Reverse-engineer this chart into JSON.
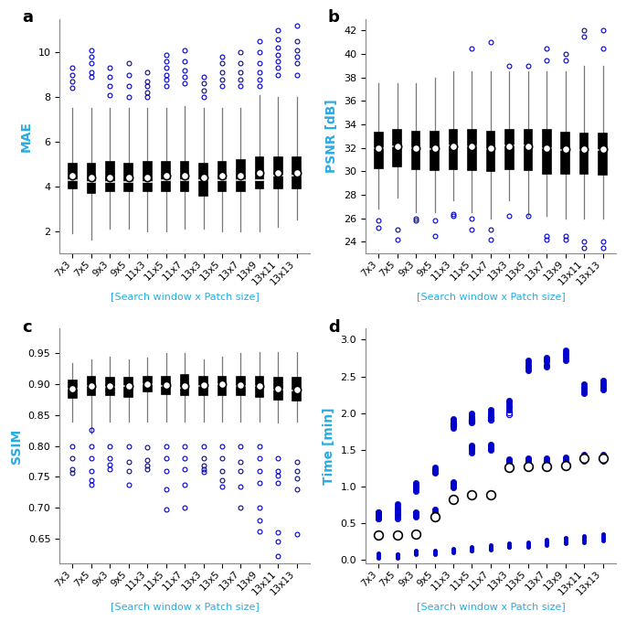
{
  "categories": [
    "7x3",
    "7x5",
    "9x3",
    "9x5",
    "11x3",
    "11x5",
    "11x7",
    "13x3",
    "13x5",
    "13x7",
    "13x9",
    "13x11",
    "13x13"
  ],
  "xlabel": "[Search window x Patch size]",
  "panel_labels": [
    "a",
    "b",
    "c",
    "d"
  ],
  "ylabel_color": "#29ABE2",
  "outlier_color": "#0000CC",
  "filled_dot_color": "#0000CC",
  "mae": {
    "ylabel": "MAE",
    "ylim": [
      1.0,
      11.5
    ],
    "yticks": [
      2,
      4,
      6,
      8,
      10
    ],
    "box_q1": [
      3.9,
      3.7,
      3.8,
      3.8,
      3.8,
      3.8,
      3.8,
      3.6,
      3.8,
      3.8,
      3.9,
      3.9,
      3.9
    ],
    "box_med": [
      4.3,
      4.2,
      4.2,
      4.2,
      4.2,
      4.3,
      4.3,
      4.3,
      4.3,
      4.3,
      4.3,
      4.5,
      4.5
    ],
    "box_q3": [
      5.0,
      5.0,
      5.1,
      5.0,
      5.1,
      5.1,
      5.1,
      5.0,
      5.1,
      5.2,
      5.3,
      5.3,
      5.3
    ],
    "box_mean": [
      4.5,
      4.4,
      4.4,
      4.4,
      4.4,
      4.5,
      4.5,
      4.4,
      4.5,
      4.5,
      4.6,
      4.6,
      4.6
    ],
    "whisker_lo": [
      1.9,
      1.6,
      2.1,
      2.1,
      2.0,
      2.0,
      2.1,
      2.1,
      2.0,
      2.0,
      2.0,
      2.2,
      2.5
    ],
    "whisker_hi": [
      7.5,
      7.5,
      7.5,
      7.5,
      7.5,
      7.5,
      7.6,
      7.5,
      7.5,
      7.5,
      8.1,
      8.0,
      8.0
    ],
    "outliers_x": [
      0,
      0,
      0,
      0,
      1,
      1,
      1,
      1,
      1,
      2,
      2,
      2,
      2,
      3,
      3,
      3,
      3,
      4,
      4,
      4,
      4,
      4,
      5,
      5,
      5,
      5,
      5,
      5,
      6,
      6,
      6,
      6,
      6,
      7,
      7,
      7,
      7,
      8,
      8,
      8,
      8,
      8,
      9,
      9,
      9,
      9,
      9,
      10,
      10,
      10,
      10,
      10,
      10,
      11,
      11,
      11,
      11,
      11,
      11,
      11,
      12,
      12,
      12,
      12,
      12,
      12
    ],
    "outliers_y": [
      8.4,
      8.7,
      9.0,
      9.3,
      8.9,
      9.1,
      9.5,
      9.8,
      10.1,
      8.1,
      8.5,
      8.9,
      9.3,
      8.0,
      8.5,
      9.0,
      9.5,
      8.0,
      8.2,
      8.5,
      8.7,
      9.1,
      8.5,
      8.8,
      9.0,
      9.3,
      9.6,
      9.9,
      8.6,
      8.9,
      9.2,
      9.6,
      10.1,
      8.0,
      8.3,
      8.6,
      8.9,
      8.5,
      8.8,
      9.1,
      9.5,
      9.8,
      8.5,
      8.8,
      9.1,
      9.5,
      10.0,
      8.5,
      8.8,
      9.1,
      9.5,
      10.0,
      10.5,
      9.0,
      9.3,
      9.6,
      9.9,
      10.2,
      10.6,
      11.0,
      9.0,
      9.5,
      9.8,
      10.1,
      10.5,
      11.2
    ]
  },
  "psnr": {
    "ylabel": "PSNR [dB]",
    "ylim": [
      23.0,
      43.0
    ],
    "yticks": [
      24,
      26,
      28,
      30,
      32,
      34,
      36,
      38,
      40,
      42
    ],
    "box_q1": [
      30.3,
      30.4,
      30.2,
      30.1,
      30.2,
      30.1,
      30.0,
      30.2,
      30.1,
      29.8,
      29.8,
      29.8,
      29.7
    ],
    "box_med": [
      32.0,
      32.1,
      32.0,
      31.9,
      32.2,
      32.1,
      31.9,
      32.2,
      32.2,
      32.0,
      31.8,
      31.8,
      31.8
    ],
    "box_q3": [
      33.3,
      33.5,
      33.4,
      33.4,
      33.5,
      33.5,
      33.4,
      33.5,
      33.5,
      33.5,
      33.3,
      33.2,
      33.2
    ],
    "box_mean": [
      32.0,
      32.1,
      32.0,
      32.0,
      32.1,
      32.1,
      32.0,
      32.1,
      32.1,
      32.0,
      31.9,
      31.9,
      31.9
    ],
    "whisker_lo": [
      26.8,
      27.8,
      26.5,
      26.5,
      27.5,
      26.5,
      26.0,
      27.5,
      26.2,
      26.2,
      26.0,
      26.0,
      26.0
    ],
    "whisker_hi": [
      37.5,
      37.5,
      37.5,
      38.0,
      38.5,
      38.5,
      38.5,
      38.5,
      38.5,
      38.5,
      38.5,
      39.0,
      39.0
    ],
    "outliers_x": [
      0,
      0,
      1,
      1,
      2,
      2,
      3,
      3,
      4,
      4,
      5,
      5,
      5,
      6,
      6,
      6,
      7,
      7,
      8,
      8,
      9,
      9,
      9,
      9,
      10,
      10,
      10,
      10,
      11,
      11,
      11,
      11,
      12,
      12,
      12,
      12
    ],
    "outliers_y": [
      25.2,
      25.8,
      24.2,
      25.0,
      25.8,
      26.0,
      24.5,
      25.8,
      26.2,
      26.4,
      25.0,
      26.0,
      40.5,
      24.2,
      25.0,
      41.0,
      26.2,
      39.0,
      26.2,
      39.0,
      24.2,
      24.5,
      39.5,
      40.5,
      24.2,
      24.5,
      39.5,
      40.0,
      23.5,
      24.0,
      41.5,
      42.0,
      23.5,
      24.0,
      40.5,
      42.0
    ]
  },
  "ssim": {
    "ylabel": "SSIM",
    "ylim": [
      0.61,
      0.99
    ],
    "yticks": [
      0.65,
      0.7,
      0.75,
      0.8,
      0.85,
      0.9,
      0.95
    ],
    "box_q1": [
      0.878,
      0.882,
      0.882,
      0.88,
      0.888,
      0.884,
      0.882,
      0.882,
      0.882,
      0.882,
      0.88,
      0.875,
      0.874
    ],
    "box_med": [
      0.893,
      0.897,
      0.896,
      0.897,
      0.9,
      0.898,
      0.895,
      0.898,
      0.9,
      0.898,
      0.898,
      0.892,
      0.89
    ],
    "box_q3": [
      0.906,
      0.912,
      0.91,
      0.91,
      0.912,
      0.912,
      0.915,
      0.912,
      0.912,
      0.912,
      0.912,
      0.91,
      0.91
    ],
    "box_mean": [
      0.893,
      0.898,
      0.897,
      0.897,
      0.9,
      0.899,
      0.897,
      0.899,
      0.9,
      0.899,
      0.898,
      0.893,
      0.891
    ],
    "whisker_lo": [
      0.84,
      0.82,
      0.84,
      0.84,
      0.84,
      0.84,
      0.84,
      0.84,
      0.84,
      0.84,
      0.84,
      0.838,
      0.84
    ],
    "whisker_hi": [
      0.935,
      0.94,
      0.945,
      0.94,
      0.943,
      0.95,
      0.95,
      0.94,
      0.945,
      0.95,
      0.952,
      0.952,
      0.952
    ],
    "outliers_x": [
      0,
      0,
      0,
      0,
      1,
      1,
      1,
      1,
      1,
      1,
      2,
      2,
      2,
      2,
      3,
      3,
      3,
      3,
      4,
      4,
      4,
      4,
      5,
      5,
      5,
      5,
      5,
      6,
      6,
      6,
      6,
      6,
      7,
      7,
      7,
      7,
      7,
      8,
      8,
      8,
      8,
      8,
      9,
      9,
      9,
      9,
      9,
      10,
      10,
      10,
      10,
      10,
      10,
      10,
      11,
      11,
      11,
      11,
      11,
      11,
      11,
      12,
      12,
      12,
      12,
      12
    ],
    "outliers_y": [
      0.8,
      0.78,
      0.762,
      0.757,
      0.826,
      0.8,
      0.78,
      0.76,
      0.745,
      0.738,
      0.8,
      0.78,
      0.77,
      0.762,
      0.8,
      0.775,
      0.76,
      0.738,
      0.798,
      0.778,
      0.768,
      0.762,
      0.8,
      0.78,
      0.76,
      0.73,
      0.698,
      0.8,
      0.78,
      0.762,
      0.738,
      0.7,
      0.8,
      0.78,
      0.768,
      0.762,
      0.758,
      0.8,
      0.78,
      0.76,
      0.745,
      0.735,
      0.8,
      0.775,
      0.76,
      0.735,
      0.7,
      0.8,
      0.78,
      0.76,
      0.74,
      0.7,
      0.68,
      0.662,
      0.78,
      0.76,
      0.752,
      0.74,
      0.66,
      0.645,
      0.622,
      0.775,
      0.76,
      0.748,
      0.73,
      0.658
    ]
  },
  "time": {
    "ylabel": "Time [min]",
    "ylim": [
      -0.05,
      3.15
    ],
    "yticks": [
      0.0,
      0.5,
      1.0,
      1.5,
      2.0,
      2.5,
      3.0
    ],
    "bottom_x": [
      0,
      0,
      0,
      0,
      0,
      1,
      1,
      1,
      1,
      1,
      2,
      2,
      2,
      2,
      2,
      3,
      3,
      3,
      3,
      3,
      4,
      4,
      4,
      4,
      4,
      5,
      5,
      5,
      5,
      5,
      6,
      6,
      6,
      6,
      6,
      7,
      7,
      7,
      7,
      7,
      8,
      8,
      8,
      8,
      8,
      9,
      9,
      9,
      9,
      9,
      10,
      10,
      10,
      10,
      10,
      11,
      11,
      11,
      11,
      11,
      12,
      12,
      12,
      12,
      12
    ],
    "bottom_y": [
      0.02,
      0.04,
      0.05,
      0.07,
      0.09,
      0.02,
      0.04,
      0.06,
      0.07,
      0.08,
      0.07,
      0.09,
      0.1,
      0.11,
      0.12,
      0.08,
      0.09,
      0.1,
      0.11,
      0.12,
      0.1,
      0.11,
      0.13,
      0.14,
      0.15,
      0.12,
      0.13,
      0.14,
      0.15,
      0.17,
      0.14,
      0.15,
      0.16,
      0.18,
      0.2,
      0.17,
      0.18,
      0.19,
      0.2,
      0.22,
      0.18,
      0.19,
      0.2,
      0.21,
      0.23,
      0.2,
      0.22,
      0.24,
      0.25,
      0.27,
      0.22,
      0.24,
      0.26,
      0.28,
      0.3,
      0.24,
      0.26,
      0.28,
      0.3,
      0.32,
      0.26,
      0.28,
      0.3,
      0.32,
      0.35
    ],
    "mid_filled_x": [
      0,
      0,
      0,
      0,
      0,
      1,
      1,
      1,
      1,
      1,
      2,
      2,
      2,
      2,
      2,
      3,
      3,
      3,
      3,
      3,
      4,
      4,
      4,
      4,
      4,
      5,
      5,
      5,
      5,
      5,
      6,
      6,
      6,
      6,
      6,
      7,
      7,
      7,
      7,
      7,
      7,
      7,
      8,
      8,
      8,
      8,
      8,
      8,
      8,
      9,
      9,
      9,
      9,
      9,
      10,
      10,
      10,
      10,
      10,
      11,
      11,
      11,
      11,
      11,
      12,
      12,
      12,
      12,
      12
    ],
    "mid_filled_y": [
      0.56,
      0.58,
      0.6,
      0.62,
      0.65,
      0.56,
      0.59,
      0.62,
      0.64,
      0.67,
      0.58,
      0.6,
      0.62,
      0.64,
      0.65,
      0.6,
      0.62,
      0.63,
      0.65,
      0.68,
      0.98,
      1.0,
      1.02,
      1.04,
      1.06,
      1.46,
      1.49,
      1.52,
      1.54,
      1.56,
      1.49,
      1.51,
      1.53,
      1.55,
      1.57,
      1.26,
      1.28,
      1.3,
      1.32,
      1.33,
      1.35,
      1.37,
      1.27,
      1.29,
      1.31,
      1.33,
      1.35,
      1.37,
      1.39,
      1.28,
      1.3,
      1.32,
      1.35,
      1.38,
      1.3,
      1.32,
      1.35,
      1.37,
      1.4,
      1.35,
      1.37,
      1.39,
      1.41,
      1.43,
      1.35,
      1.37,
      1.39,
      1.41,
      1.43
    ],
    "mean_x": [
      0,
      1,
      2,
      3,
      4,
      5,
      6,
      7,
      8,
      9,
      10,
      11,
      12
    ],
    "mean_y": [
      0.34,
      0.34,
      0.35,
      0.59,
      0.82,
      0.88,
      0.89,
      1.26,
      1.27,
      1.27,
      1.28,
      1.38,
      1.38
    ],
    "top_filled_x": [
      0,
      0,
      0,
      0,
      0,
      1,
      1,
      1,
      1,
      1,
      2,
      2,
      2,
      2,
      2,
      3,
      3,
      3,
      3,
      3,
      4,
      4,
      4,
      4,
      4,
      5,
      5,
      5,
      5,
      5,
      6,
      6,
      6,
      6,
      6,
      7,
      7,
      7,
      7,
      7,
      8,
      8,
      8,
      8,
      8,
      9,
      9,
      9,
      9,
      9,
      10,
      10,
      10,
      10,
      10,
      11,
      11,
      11,
      11,
      11,
      12,
      12,
      12,
      12,
      12
    ],
    "top_filled_y": [
      0.56,
      0.58,
      0.6,
      0.63,
      0.65,
      0.62,
      0.65,
      0.68,
      0.72,
      0.76,
      0.94,
      0.97,
      1.0,
      1.02,
      1.05,
      1.18,
      1.2,
      1.22,
      1.24,
      1.26,
      1.8,
      1.83,
      1.86,
      1.89,
      1.92,
      1.87,
      1.9,
      1.93,
      1.96,
      1.99,
      1.92,
      1.95,
      1.98,
      2.01,
      2.04,
      2.05,
      2.08,
      2.11,
      2.14,
      2.17,
      2.58,
      2.62,
      2.65,
      2.68,
      2.72,
      2.63,
      2.66,
      2.7,
      2.73,
      2.76,
      2.72,
      2.76,
      2.79,
      2.82,
      2.85,
      2.27,
      2.3,
      2.33,
      2.36,
      2.4,
      2.32,
      2.35,
      2.38,
      2.41,
      2.44
    ],
    "top_open_x": [
      4,
      4,
      5,
      5,
      6,
      6,
      7,
      7
    ],
    "top_open_y": [
      1.83,
      1.86,
      1.88,
      1.91,
      1.91,
      1.94,
      1.98,
      2.01
    ]
  }
}
